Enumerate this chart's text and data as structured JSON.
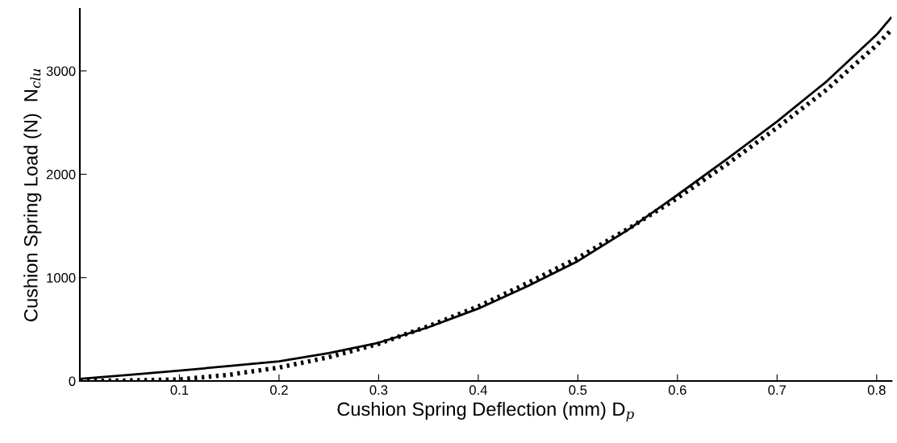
{
  "chart_data": {
    "type": "line",
    "xlabel": "Cushion Spring Deflection (mm) D$_{p}$",
    "ylabel": "Cushion Spring Load (N)  N$_{clu}$",
    "x": [
      0,
      0.05,
      0.1,
      0.15,
      0.2,
      0.25,
      0.3,
      0.35,
      0.4,
      0.45,
      0.5,
      0.55,
      0.6,
      0.65,
      0.7,
      0.75,
      0.8,
      0.815
    ],
    "series": [
      {
        "color": "#000000",
        "line_style": "solid",
        "values": [
          20,
          60,
          100,
          145,
          190,
          270,
          370,
          520,
          700,
          920,
          1160,
          1460,
          1800,
          2150,
          2510,
          2900,
          3350,
          3520
        ]
      },
      {
        "color": "#000000",
        "line_style": "dotted",
        "values": [
          0,
          5,
          15,
          60,
          130,
          230,
          360,
          530,
          720,
          950,
          1190,
          1470,
          1770,
          2100,
          2450,
          2820,
          3250,
          3400
        ]
      }
    ],
    "xlim": [
      0,
      0.815
    ],
    "ylim": [
      0,
      3600
    ],
    "xticks": [
      0.1,
      0.2,
      0.3,
      0.4,
      0.5,
      0.6,
      0.7,
      0.8
    ],
    "yticks": [
      0,
      1000,
      2000,
      3000
    ],
    "grid": false,
    "legend": false
  }
}
